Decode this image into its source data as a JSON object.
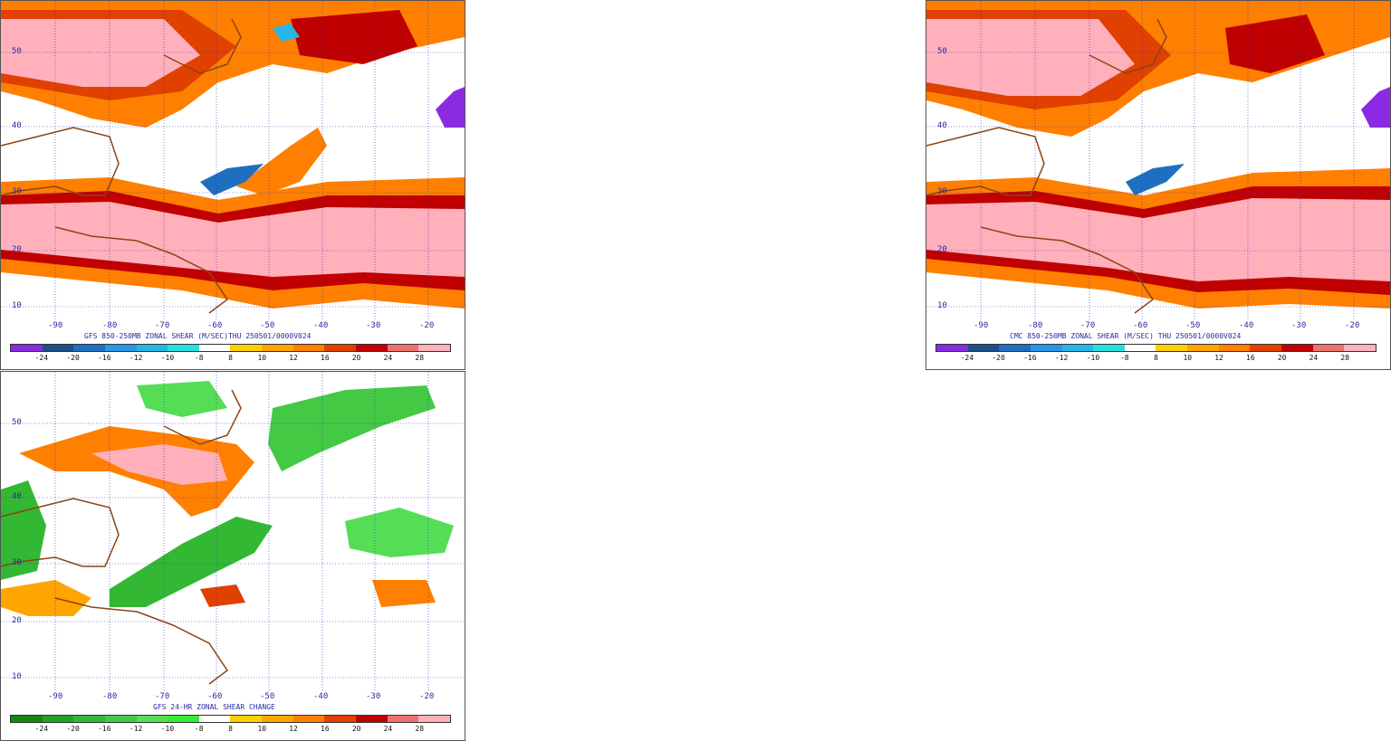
{
  "panels": {
    "gfs": {
      "title": "GFS 850-250MB ZONAL SHEAR (M/SEC)THU 250501/0000V024"
    },
    "cmc": {
      "title": "CMC 850-250MB ZONAL SHEAR (M/SEC) THU 250501/0000V024"
    },
    "chg": {
      "title": "GFS 24-HR ZONAL SHEAR CHANGE"
    }
  },
  "lon_labels": [
    "-90",
    "-80",
    "-70",
    "-60",
    "-50",
    "-40",
    "-30",
    "-20"
  ],
  "lat_labels": [
    "50",
    "40",
    "30",
    "20",
    "10"
  ],
  "colorbar": {
    "labels": [
      "-24",
      "-20",
      "-16",
      "-12",
      "-10",
      "-8",
      "8",
      "10",
      "12",
      "16",
      "20",
      "24",
      "28"
    ],
    "shear_colors": [
      "#8a2be2",
      "#1c4e8a",
      "#1f6fc0",
      "#2b95e8",
      "#27b7e6",
      "#27e0e0",
      "#ffffff",
      "#ffd000",
      "#ffa500",
      "#ff7f00",
      "#e04000",
      "#c00000",
      "#f07070",
      "#ffb0bb"
    ],
    "change_colors": [
      "#118811",
      "#22a322",
      "#33b833",
      "#44c944",
      "#55dd55",
      "#33ee33",
      "#ffffff",
      "#ffd000",
      "#ffa500",
      "#ff7f00",
      "#e04000",
      "#c00000",
      "#f07070",
      "#ffb0bb"
    ]
  }
}
